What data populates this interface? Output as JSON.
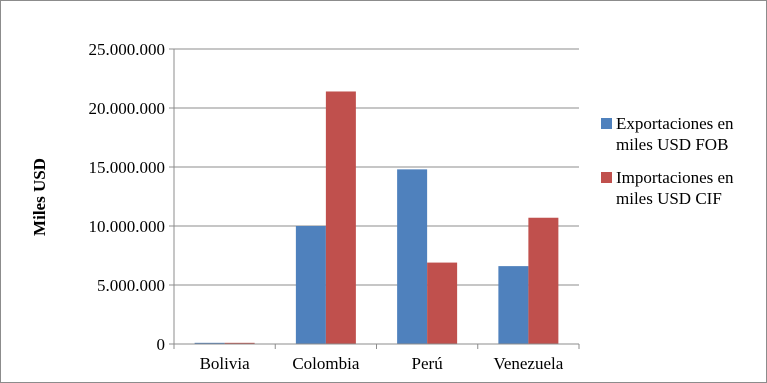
{
  "chart_data": {
    "type": "bar",
    "title": "",
    "xlabel": "",
    "ylabel": "Miles USD",
    "categories": [
      "Bolivia",
      "Colombia",
      "Perú",
      "Venezuela"
    ],
    "series": [
      {
        "name": "Exportaciones en miles USD FOB",
        "color": "#4f81bd",
        "values": [
          100000,
          10000000,
          14800000,
          6600000
        ]
      },
      {
        "name": "Importaciones en miles USD CIF",
        "color": "#c0504d",
        "values": [
          100000,
          21400000,
          6900000,
          10700000
        ]
      }
    ],
    "ylim": [
      0,
      25000000
    ],
    "yticks": [
      0,
      5000000,
      10000000,
      15000000,
      20000000,
      25000000
    ],
    "ytick_labels": [
      "0",
      "5.000.000",
      "10.000.000",
      "15.000.000",
      "20.000.000",
      "25.000.000"
    ],
    "grid": true,
    "legend_position": "right"
  }
}
